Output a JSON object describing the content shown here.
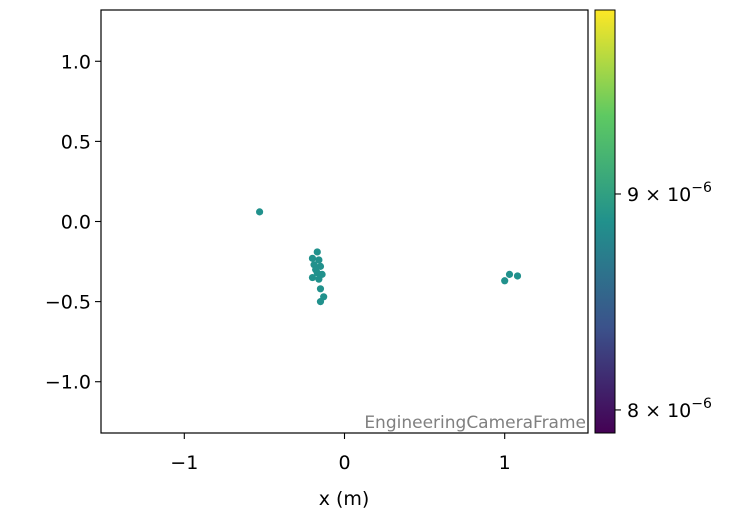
{
  "chart_data": {
    "type": "scatter",
    "title": "",
    "xlabel": "x  (m)",
    "ylabel": "",
    "xlim": [
      -1.52,
      1.52
    ],
    "ylim": [
      -1.32,
      1.32
    ],
    "x_ticks": [
      -1,
      0,
      1
    ],
    "x_tick_labels": [
      "−1",
      "0",
      "1"
    ],
    "y_ticks": [
      1.0,
      0.5,
      0.0,
      -0.5,
      -1.0
    ],
    "y_tick_labels": [
      "1.0",
      "0.5",
      "0.0",
      "−0.5",
      "−1.0"
    ],
    "grid": false,
    "annotation": "EngineeringCameraFrame",
    "point_color": "#21918c",
    "points": [
      {
        "x": -0.53,
        "y": 0.06
      },
      {
        "x": -0.17,
        "y": -0.19
      },
      {
        "x": -0.2,
        "y": -0.23
      },
      {
        "x": -0.16,
        "y": -0.24
      },
      {
        "x": -0.19,
        "y": -0.27
      },
      {
        "x": -0.15,
        "y": -0.28
      },
      {
        "x": -0.18,
        "y": -0.3
      },
      {
        "x": -0.17,
        "y": -0.32
      },
      {
        "x": -0.14,
        "y": -0.33
      },
      {
        "x": -0.2,
        "y": -0.35
      },
      {
        "x": -0.16,
        "y": -0.36
      },
      {
        "x": -0.15,
        "y": -0.42
      },
      {
        "x": -0.13,
        "y": -0.47
      },
      {
        "x": -0.15,
        "y": -0.5
      },
      {
        "x": 1.0,
        "y": -0.37
      },
      {
        "x": 1.03,
        "y": -0.33
      },
      {
        "x": 1.08,
        "y": -0.34
      }
    ],
    "colorbar": {
      "scale": "log",
      "colormap": [
        "#440154",
        "#3b528b",
        "#21918c",
        "#5ec962",
        "#fde725"
      ],
      "range": [
        7.9e-06,
        9.95e-06
      ],
      "ticks": [
        8e-06,
        9e-06
      ],
      "tick_mantissas": [
        "8",
        "9"
      ],
      "tick_base": "× 10",
      "tick_exponent": "−6"
    }
  }
}
